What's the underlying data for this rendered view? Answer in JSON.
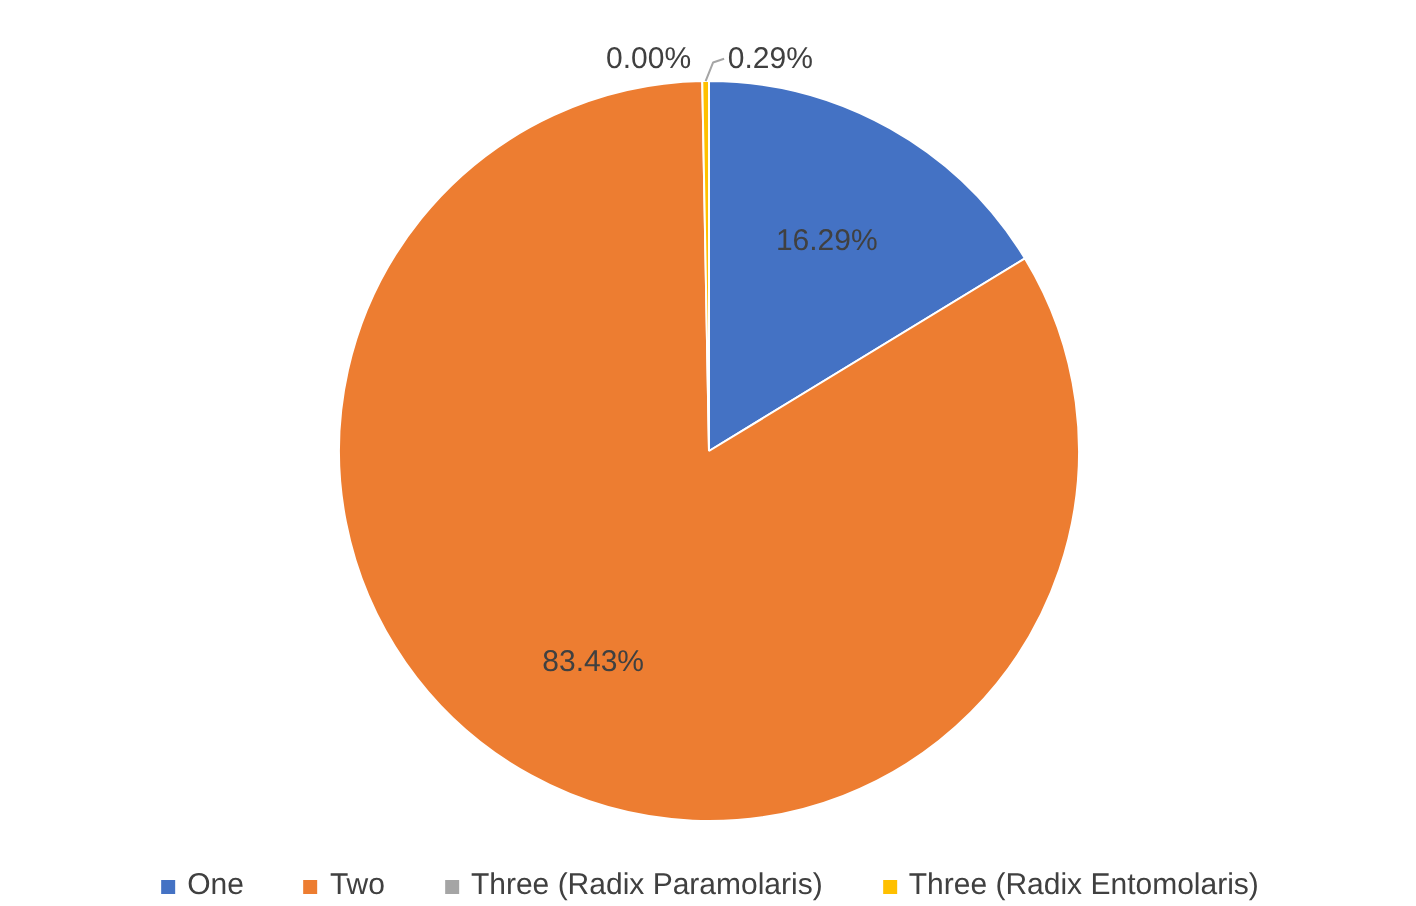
{
  "chart_data": {
    "type": "pie",
    "categories": [
      "One",
      "Two",
      "Three (Radix Paramolaris)",
      "Three (Radix Entomolaris)"
    ],
    "values": [
      16.29,
      83.43,
      0.0,
      0.29
    ],
    "value_labels": [
      "16.29%",
      "83.43%",
      "0.00%",
      "0.29%"
    ],
    "colors": [
      "#4472c4",
      "#ed7d31",
      "#a5a5a5",
      "#ffc000"
    ],
    "legend": "bottom"
  }
}
